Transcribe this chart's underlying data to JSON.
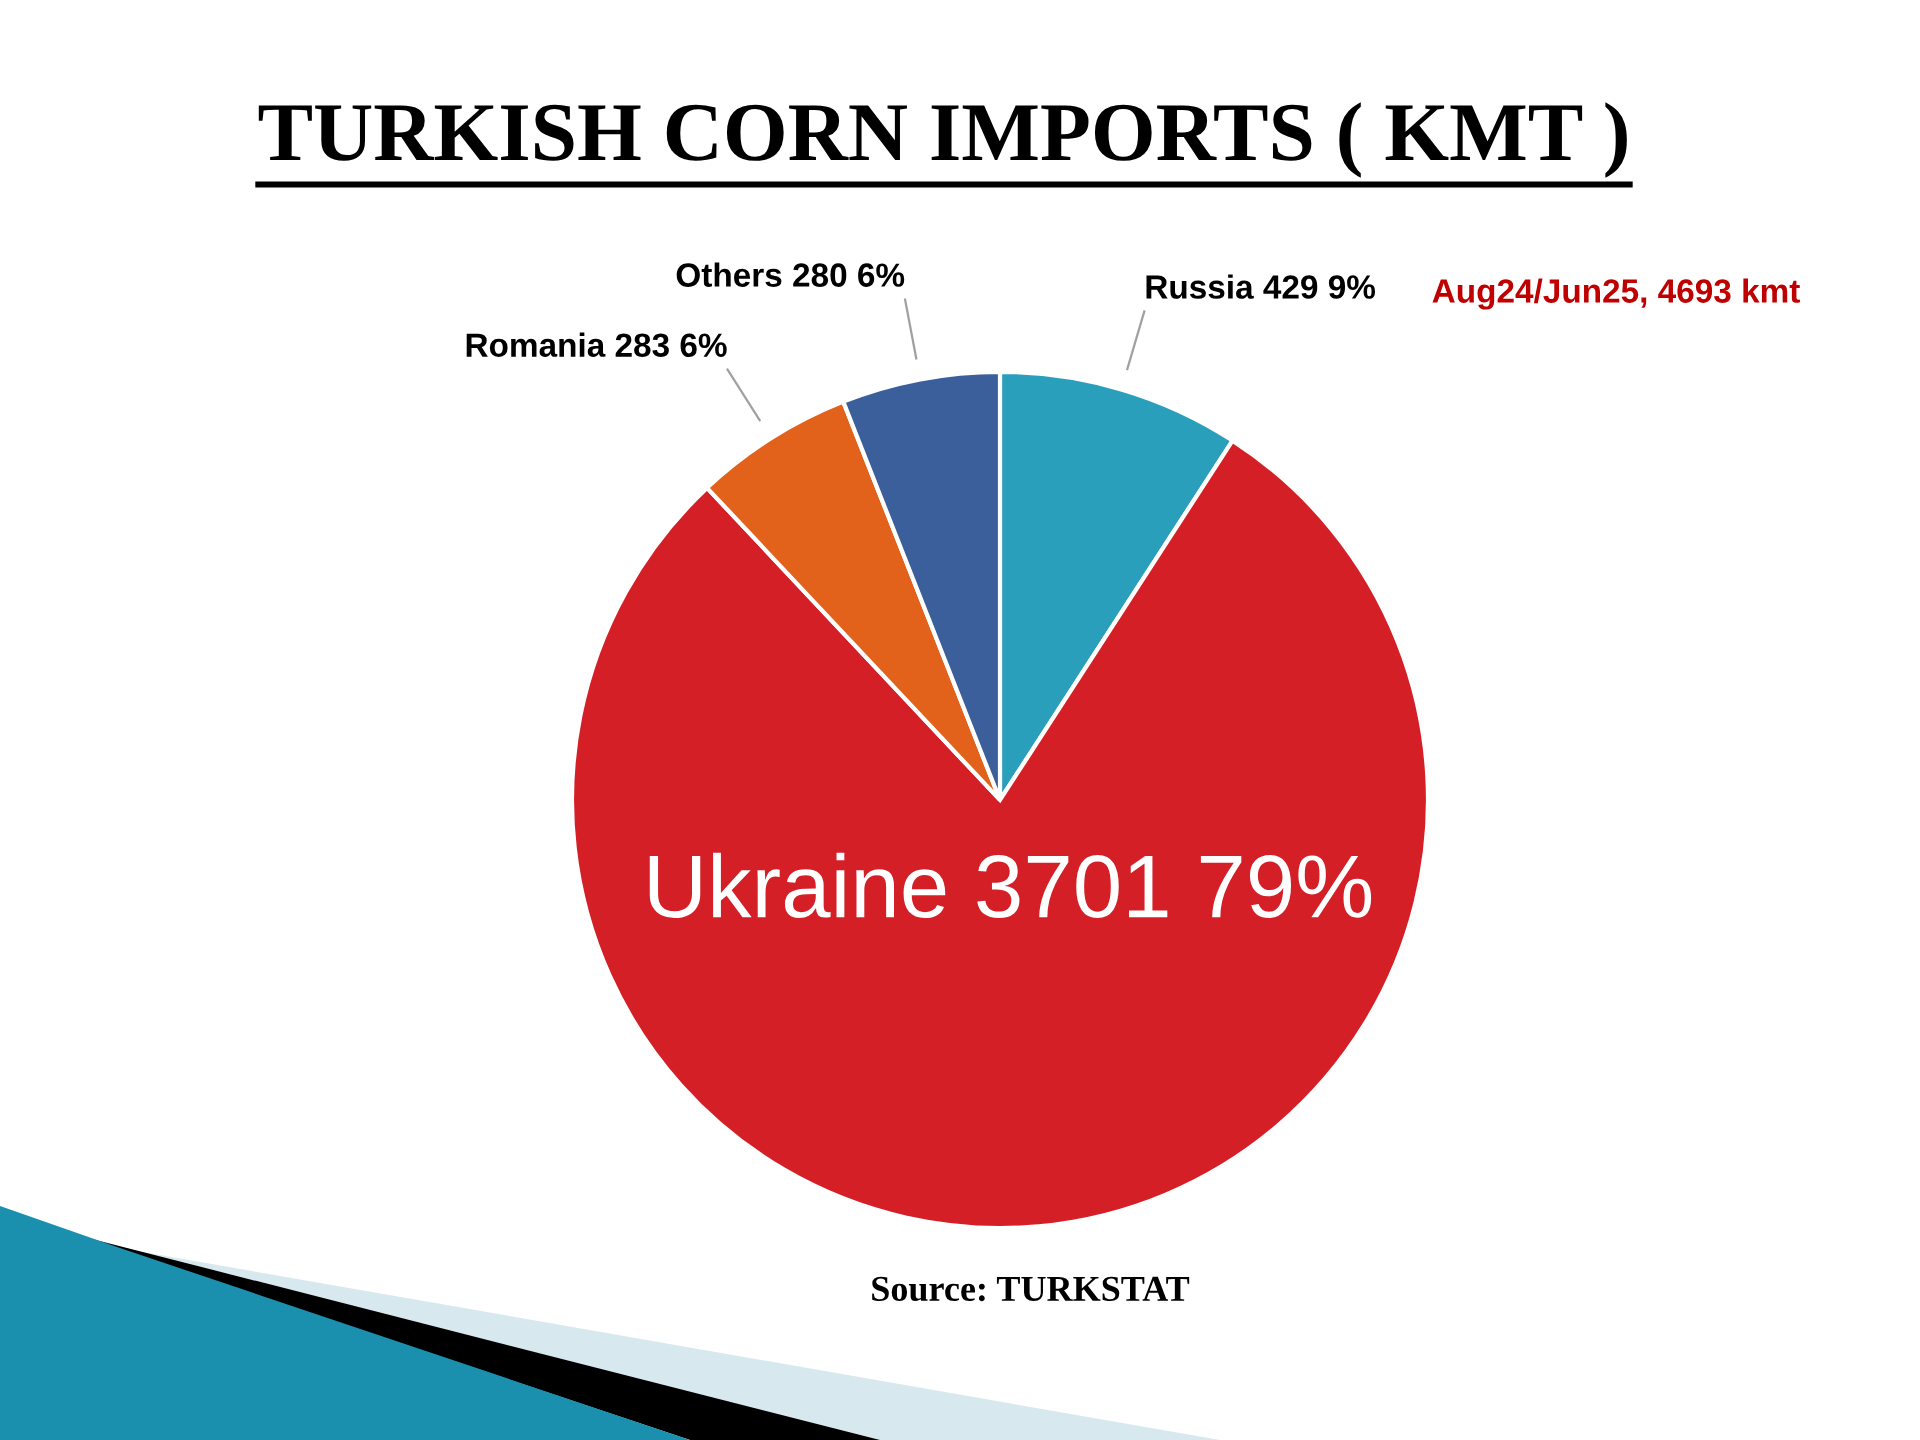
{
  "chart_data": {
    "type": "pie",
    "title": "TURKISH CORN IMPORTS ( KMT )",
    "categories": [
      "Russia",
      "Ukraine",
      "Romania",
      "Others"
    ],
    "values": [
      429,
      3701,
      283,
      280
    ],
    "value_labels": [
      "429 9%",
      "3701 79%",
      "283 6%",
      "280 6%"
    ],
    "colors": [
      "#2a9fbc",
      "#d41f26",
      "#e2621b",
      "#3a5f9a"
    ],
    "annotations": [
      "Aug24/Jun25, 4693 kmt",
      "Source: TURKSTAT"
    ]
  }
}
